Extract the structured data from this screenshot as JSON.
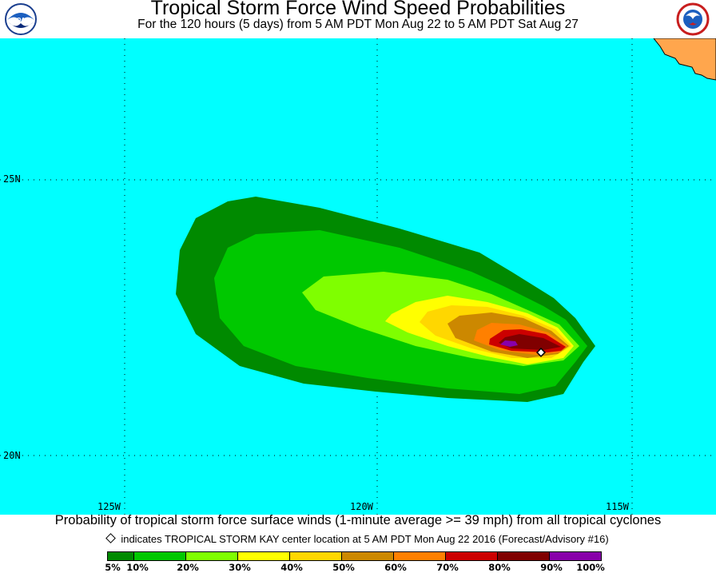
{
  "header": {
    "title": "Tropical Storm Force Wind Speed Probabilities",
    "subtitle": "For the 120 hours (5 days) from 5 AM PDT Mon Aug 22 to 5 AM PDT Sat Aug 27",
    "left_logo": "noaa-logo",
    "left_logo_text": "NOAA",
    "right_logo": "national-weather-service-logo"
  },
  "map": {
    "ocean_color": "#00ffff",
    "land_color": "#ffa64d",
    "latitude_labels": [
      "25N",
      "20N"
    ],
    "longitude_labels": [
      "125W",
      "120W",
      "115W"
    ]
  },
  "footer": {
    "caption": "Probability of tropical storm force surface winds (1-minute average >= 39 mph) from all tropical cyclones",
    "indicator_icon": "diamond-marker-icon",
    "indicator_text": "indicates TROPICAL STORM KAY center location at 5 AM PDT Mon Aug 22 2016 (Forecast/Advisory #16)"
  },
  "legend": {
    "ticks": [
      "5%",
      "10%",
      "20%",
      "30%",
      "40%",
      "50%",
      "60%",
      "70%",
      "80%",
      "90%",
      "100%"
    ],
    "colors": [
      "#008a00",
      "#00c800",
      "#7fff00",
      "#ffff00",
      "#ffd700",
      "#cc8800",
      "#ff8000",
      "#cc0000",
      "#800000",
      "#8800aa"
    ]
  }
}
